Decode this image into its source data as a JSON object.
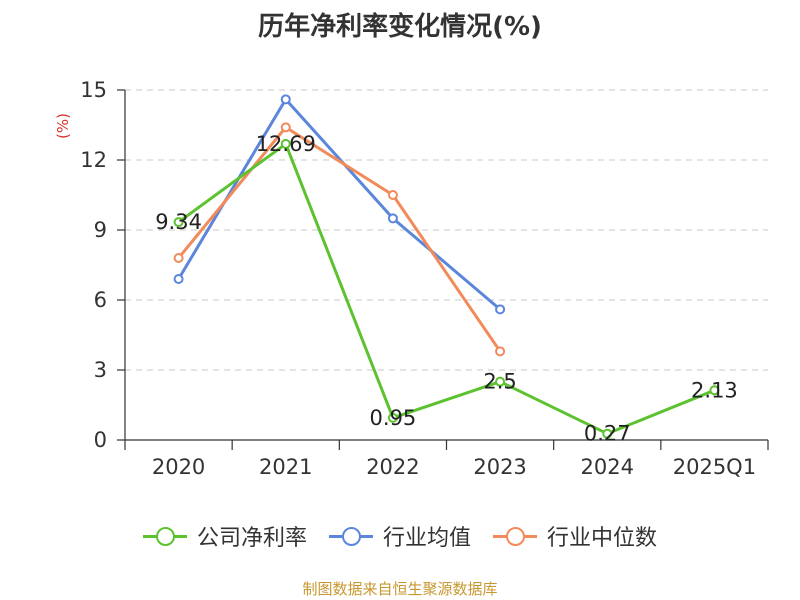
{
  "chart_data": {
    "type": "line",
    "title": "历年净利率变化情况(%)",
    "ylabel": "(%)",
    "categories": [
      "2020",
      "2021",
      "2022",
      "2023",
      "2024",
      "2025Q1"
    ],
    "ylim": [
      0,
      15
    ],
    "yticks": [
      0,
      3,
      6,
      9,
      12,
      15
    ],
    "grid": true,
    "legend_position": "bottom",
    "series": [
      {
        "name": "公司净利率",
        "color": "#5cc230",
        "values": [
          9.34,
          12.69,
          0.95,
          2.5,
          0.27,
          2.13
        ],
        "labels": [
          "9.34",
          "12.69",
          "0.95",
          "2.5",
          "0.27",
          "2.13"
        ]
      },
      {
        "name": "行业均值",
        "color": "#5b86db",
        "values": [
          6.9,
          14.6,
          9.5,
          5.6,
          null,
          null
        ]
      },
      {
        "name": "行业中位数",
        "color": "#f28a5a",
        "values": [
          7.8,
          13.4,
          10.5,
          3.8,
          null,
          null
        ]
      }
    ]
  },
  "source": "制图数据来自恒生聚源数据库"
}
